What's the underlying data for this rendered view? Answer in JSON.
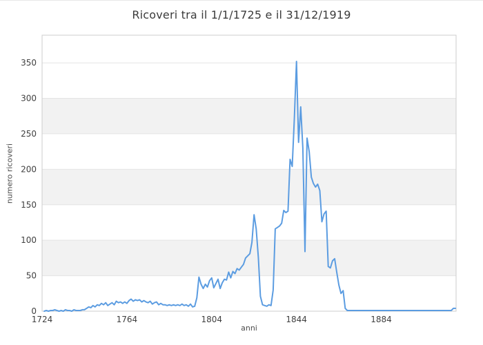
{
  "page": {
    "background": "#ffffff"
  },
  "chart_data": {
    "type": "line",
    "title": "Ricoveri tra il 1/1/1725 e il 31/12/1919",
    "xlabel": "anni",
    "ylabel": "numero ricoveri",
    "x_ticks": [
      1724,
      1764,
      1804,
      1844,
      1884
    ],
    "y_ticks": [
      0,
      50,
      100,
      150,
      200,
      250,
      300,
      350
    ],
    "xlim": [
      1724,
      1919.3
    ],
    "ylim": [
      0,
      389
    ],
    "grid": "horizontal",
    "legend": "none",
    "plot_bands": [
      [
        50,
        100
      ],
      [
        150,
        200
      ],
      [
        250,
        300
      ]
    ],
    "colors": {
      "line": "#5b9ce1",
      "band": "#f2f2f2",
      "gridline": "#e4e4e4",
      "plot_border": "#cccccc",
      "tick_label": "#3f3f3f"
    },
    "series": [
      {
        "name": "numero ricoveri",
        "x_start": 1725,
        "x_step": 1,
        "values": [
          0,
          1,
          0,
          1,
          1,
          2,
          1,
          0,
          1,
          0,
          2,
          1,
          1,
          0,
          2,
          1,
          1,
          1,
          2,
          2,
          4,
          6,
          5,
          8,
          6,
          9,
          8,
          11,
          9,
          12,
          8,
          10,
          12,
          9,
          14,
          12,
          13,
          11,
          13,
          11,
          15,
          17,
          14,
          16,
          15,
          16,
          13,
          15,
          13,
          12,
          14,
          10,
          12,
          13,
          9,
          11,
          9,
          9,
          8,
          9,
          8,
          9,
          8,
          9,
          8,
          10,
          8,
          9,
          7,
          10,
          6,
          7,
          19,
          48,
          38,
          32,
          38,
          34,
          43,
          47,
          33,
          39,
          45,
          32,
          40,
          45,
          44,
          55,
          47,
          56,
          53,
          60,
          58,
          62,
          66,
          75,
          78,
          81,
          97,
          136,
          116,
          76,
          21,
          9,
          8,
          7,
          9,
          8,
          30,
          116,
          118,
          120,
          124,
          142,
          139,
          141,
          214,
          204,
          272,
          352,
          238,
          288,
          230,
          84,
          244,
          225,
          189,
          180,
          175,
          179,
          170,
          126,
          137,
          141,
          63,
          61,
          71,
          74,
          55,
          37,
          25,
          29,
          4,
          1,
          1,
          1,
          1,
          1,
          1,
          1,
          1,
          1,
          1,
          1,
          1,
          1,
          1,
          1,
          1,
          1,
          1,
          1,
          1,
          1,
          1,
          1,
          1,
          1,
          1,
          1,
          1,
          1,
          1,
          1,
          1,
          1,
          1,
          1,
          1,
          1,
          1,
          1,
          1,
          1,
          1,
          1,
          1,
          1,
          1,
          1,
          1,
          1,
          1,
          4,
          4
        ]
      }
    ]
  }
}
